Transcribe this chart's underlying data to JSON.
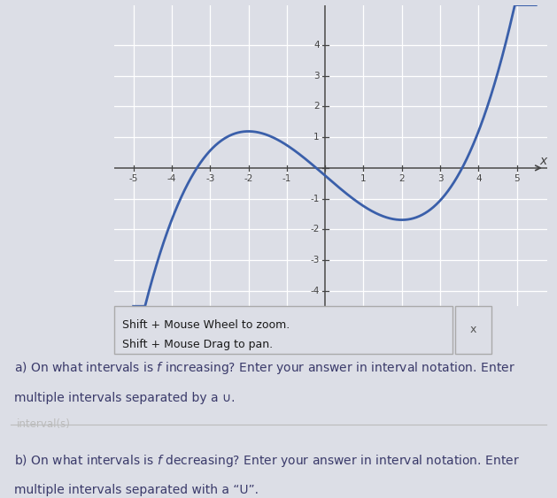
{
  "xlim": [
    -5.5,
    5.8
  ],
  "ylim": [
    -4.5,
    5.3
  ],
  "xticks": [
    -5,
    -4,
    -3,
    -2,
    -1,
    1,
    2,
    3,
    4,
    5
  ],
  "yticks": [
    -4,
    -3,
    -2,
    -1,
    1,
    2,
    3,
    4
  ],
  "xlabel": "x",
  "curve_color": "#3a5faa",
  "curve_linewidth": 2.0,
  "graph_bg": "#e8eaf0",
  "grid_color": "#ffffff",
  "axis_color": "#444444",
  "tick_label_color": "#444444",
  "shift_zoom_text_line1": "Shift + Mouse Wheel to zoom.",
  "shift_zoom_text_line2": "Shift + Mouse Drag to pan.",
  "x_close_btn": "x",
  "outer_bg": "#dcdee6",
  "text_bg": "#f0f0f0",
  "note_color": "#3a3a6a",
  "interval_placeholder": "interval(s)",
  "poly_a": 0.09,
  "poly_b": 0.0,
  "poly_c": -1.08,
  "poly_d": -0.25
}
